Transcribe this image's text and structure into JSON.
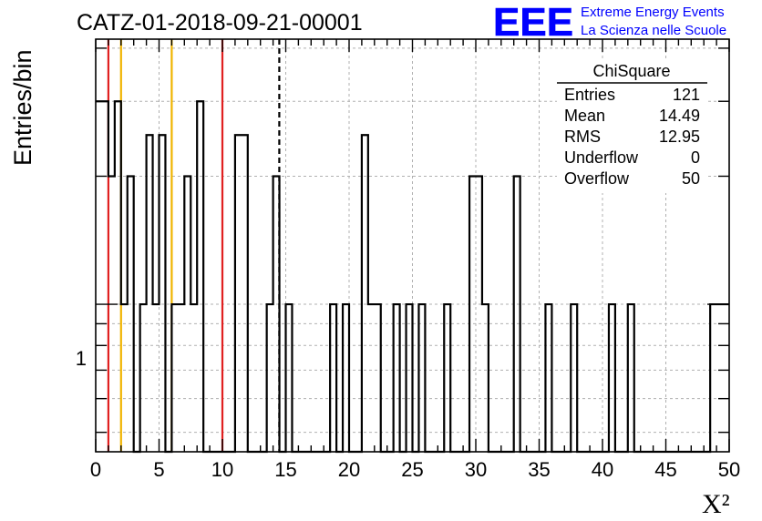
{
  "title": "CATZ-01-2018-09-21-00001",
  "logo": {
    "mark": "EEE",
    "line1": "Extreme Energy Events",
    "line2": "La Scienza nelle Scuole",
    "color": "#0000ff"
  },
  "stats_box": {
    "name": "ChiSquare",
    "rows": [
      {
        "label": "Entries",
        "value": "121"
      },
      {
        "label": "Mean",
        "value": "14.49"
      },
      {
        "label": "RMS",
        "value": "12.95"
      },
      {
        "label": "Underflow",
        "value": "0"
      },
      {
        "label": "Overflow",
        "value": "50"
      }
    ]
  },
  "chart_data": {
    "type": "bar",
    "title": "CATZ-01-2018-09-21-00001",
    "xlabel": "X²",
    "ylabel": "Entries/bin",
    "xlim": [
      0,
      50
    ],
    "ylim": [
      0.45,
      4.2
    ],
    "log_y": true,
    "grid": true,
    "bin_width": 0.5,
    "x_ticks": [
      "0",
      "5",
      "10",
      "15",
      "20",
      "25",
      "30",
      "35",
      "40",
      "45",
      "50"
    ],
    "y_tick_labels": [
      "1"
    ],
    "bins": [
      {
        "x": 0.0,
        "y": 3
      },
      {
        "x": 0.5,
        "y": 3
      },
      {
        "x": 1.0,
        "y": 2
      },
      {
        "x": 1.5,
        "y": 3
      },
      {
        "x": 2.0,
        "y": 1
      },
      {
        "x": 2.5,
        "y": 2
      },
      {
        "x": 3.0,
        "y": 0
      },
      {
        "x": 3.5,
        "y": 1
      },
      {
        "x": 4.0,
        "y": 2.5
      },
      {
        "x": 4.5,
        "y": 1
      },
      {
        "x": 5.0,
        "y": 2.5
      },
      {
        "x": 5.5,
        "y": 0
      },
      {
        "x": 6.0,
        "y": 1
      },
      {
        "x": 6.5,
        "y": 1
      },
      {
        "x": 7.0,
        "y": 2
      },
      {
        "x": 7.5,
        "y": 1
      },
      {
        "x": 8.0,
        "y": 3
      },
      {
        "x": 8.5,
        "y": 0
      },
      {
        "x": 9.0,
        "y": 0
      },
      {
        "x": 9.5,
        "y": 0
      },
      {
        "x": 10.0,
        "y": 0
      },
      {
        "x": 10.5,
        "y": 0
      },
      {
        "x": 11.0,
        "y": 2.5
      },
      {
        "x": 11.5,
        "y": 2.5
      },
      {
        "x": 12.0,
        "y": 0
      },
      {
        "x": 12.5,
        "y": 0
      },
      {
        "x": 13.0,
        "y": 0
      },
      {
        "x": 13.5,
        "y": 1
      },
      {
        "x": 14.0,
        "y": 2
      },
      {
        "x": 14.5,
        "y": 0
      },
      {
        "x": 15.0,
        "y": 1
      },
      {
        "x": 15.5,
        "y": 0
      },
      {
        "x": 16.0,
        "y": 0
      },
      {
        "x": 16.5,
        "y": 0
      },
      {
        "x": 17.0,
        "y": 0
      },
      {
        "x": 17.5,
        "y": 0
      },
      {
        "x": 18.0,
        "y": 0
      },
      {
        "x": 18.5,
        "y": 1
      },
      {
        "x": 19.0,
        "y": 0
      },
      {
        "x": 19.5,
        "y": 1
      },
      {
        "x": 20.0,
        "y": 0
      },
      {
        "x": 20.5,
        "y": 0
      },
      {
        "x": 21.0,
        "y": 2.5
      },
      {
        "x": 21.5,
        "y": 1
      },
      {
        "x": 22.0,
        "y": 1
      },
      {
        "x": 22.5,
        "y": 0
      },
      {
        "x": 23.0,
        "y": 0
      },
      {
        "x": 23.5,
        "y": 1
      },
      {
        "x": 24.0,
        "y": 0
      },
      {
        "x": 24.5,
        "y": 1
      },
      {
        "x": 25.0,
        "y": 0
      },
      {
        "x": 25.5,
        "y": 1
      },
      {
        "x": 26.0,
        "y": 0
      },
      {
        "x": 26.5,
        "y": 0
      },
      {
        "x": 27.0,
        "y": 0
      },
      {
        "x": 27.5,
        "y": 1
      },
      {
        "x": 28.0,
        "y": 0
      },
      {
        "x": 28.5,
        "y": 0
      },
      {
        "x": 29.0,
        "y": 0
      },
      {
        "x": 29.5,
        "y": 2
      },
      {
        "x": 30.0,
        "y": 2
      },
      {
        "x": 30.5,
        "y": 1
      },
      {
        "x": 31.0,
        "y": 0
      },
      {
        "x": 31.5,
        "y": 0
      },
      {
        "x": 32.0,
        "y": 0
      },
      {
        "x": 32.5,
        "y": 0
      },
      {
        "x": 33.0,
        "y": 2
      },
      {
        "x": 33.5,
        "y": 0
      },
      {
        "x": 34.0,
        "y": 0
      },
      {
        "x": 34.5,
        "y": 0
      },
      {
        "x": 35.0,
        "y": 0
      },
      {
        "x": 35.5,
        "y": 1
      },
      {
        "x": 36.0,
        "y": 0
      },
      {
        "x": 36.5,
        "y": 0
      },
      {
        "x": 37.0,
        "y": 0
      },
      {
        "x": 37.5,
        "y": 1
      },
      {
        "x": 38.0,
        "y": 0
      },
      {
        "x": 38.5,
        "y": 0
      },
      {
        "x": 39.0,
        "y": 0
      },
      {
        "x": 39.5,
        "y": 0
      },
      {
        "x": 40.0,
        "y": 0
      },
      {
        "x": 40.5,
        "y": 1
      },
      {
        "x": 41.0,
        "y": 0
      },
      {
        "x": 41.5,
        "y": 0
      },
      {
        "x": 42.0,
        "y": 1
      },
      {
        "x": 42.5,
        "y": 0
      },
      {
        "x": 43.0,
        "y": 0
      },
      {
        "x": 43.5,
        "y": 0
      },
      {
        "x": 44.0,
        "y": 0
      },
      {
        "x": 44.5,
        "y": 0
      },
      {
        "x": 45.0,
        "y": 0
      },
      {
        "x": 45.5,
        "y": 0
      },
      {
        "x": 46.0,
        "y": 0
      },
      {
        "x": 46.5,
        "y": 0
      },
      {
        "x": 47.0,
        "y": 0
      },
      {
        "x": 47.5,
        "y": 0
      },
      {
        "x": 48.0,
        "y": 0
      },
      {
        "x": 48.5,
        "y": 1
      },
      {
        "x": 49.0,
        "y": 1
      },
      {
        "x": 49.5,
        "y": 1
      }
    ],
    "reference_lines": [
      {
        "x": 1,
        "color": "#e02020",
        "style": "solid"
      },
      {
        "x": 2,
        "color": "#f0b400",
        "style": "solid"
      },
      {
        "x": 6,
        "color": "#f0b400",
        "style": "solid"
      },
      {
        "x": 10,
        "color": "#e02020",
        "style": "solid"
      },
      {
        "x": 14.49,
        "color": "#000000",
        "style": "dashed"
      }
    ]
  }
}
